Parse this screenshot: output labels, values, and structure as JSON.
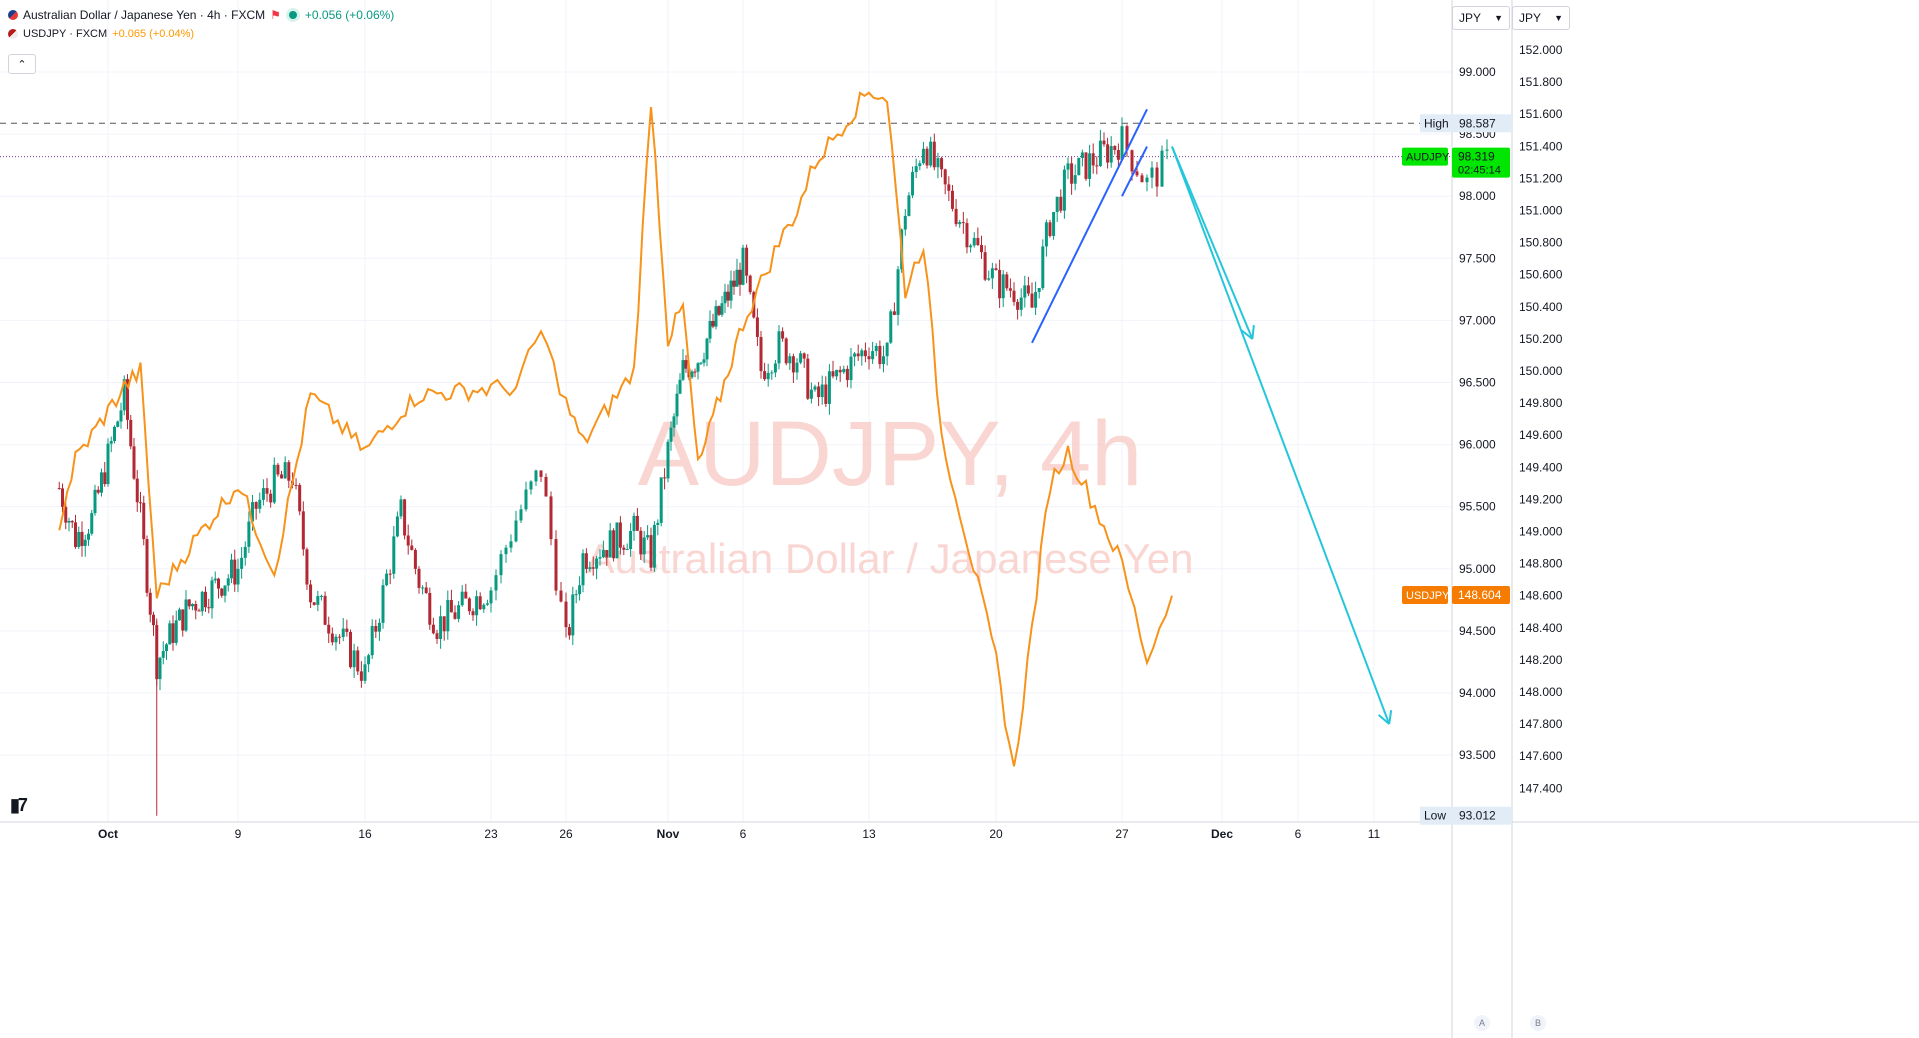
{
  "legend": {
    "main_symbol": "Australian Dollar / Japanese Yen · 4h · FXCM",
    "main_change": "+0.056 (+0.06%)",
    "compare_symbol": "USDJPY · FXCM",
    "compare_change": "+0.065 (+0.04%)",
    "collapse_icon": "chevron-up-icon"
  },
  "watermark": {
    "line1": "AUDJPY, 4h",
    "line2": "Australian Dollar / Japanese Yen"
  },
  "currency_selectors": [
    "JPY",
    "JPY"
  ],
  "scale_buttons": [
    "A",
    "B"
  ],
  "markers": {
    "high_label": "High",
    "high_value": "98.587",
    "low_label": "Low",
    "low_value": "93.012",
    "audjpy_label": "AUDJPY",
    "audjpy_value": "98.319",
    "countdown": "02:45:14",
    "usdjpy_label": "USDJPY",
    "usdjpy_value": "148.604"
  },
  "colors": {
    "up": "#089981",
    "down": "#b22833",
    "usdjpy": "#f7931a",
    "projection": "#26c6da",
    "wedge": "#2962ff",
    "price_tag": "#00e600"
  },
  "chart_data": {
    "type": "candlestick + line",
    "timeframe": "4h",
    "x_labels": [
      "Oct",
      "9",
      "16",
      "23",
      "26",
      "Nov",
      "6",
      "13",
      "20",
      "27",
      "Dec",
      "6",
      "11"
    ],
    "left_axis": {
      "symbol": "AUDJPY",
      "ticks": [
        "99.000",
        "98.500",
        "98.000",
        "97.500",
        "97.000",
        "96.500",
        "96.000",
        "95.500",
        "95.000",
        "94.500",
        "94.000",
        "93.500"
      ],
      "high": 98.587,
      "low": 93.012,
      "last": 98.319
    },
    "right_axis": {
      "symbol": "USDJPY",
      "ticks": [
        "152.000",
        "151.800",
        "151.600",
        "151.400",
        "151.200",
        "151.000",
        "150.800",
        "150.600",
        "150.400",
        "150.200",
        "150.000",
        "149.800",
        "149.600",
        "149.400",
        "149.200",
        "149.000",
        "148.800",
        "148.600",
        "148.400",
        "148.200",
        "148.000",
        "147.800",
        "147.600",
        "147.400"
      ],
      "last": 148.604
    },
    "audjpy_anchor_closes": [
      [
        "Sep 28",
        95.65
      ],
      [
        "Sep 29",
        95.25
      ],
      [
        "Sep 30",
        95.4
      ],
      [
        "Oct 2",
        96.4
      ],
      [
        "Oct 3",
        95.4
      ],
      [
        "Oct 4",
        94.25
      ],
      [
        "Oct 5",
        94.5
      ],
      [
        "Oct 6",
        94.7
      ],
      [
        "Oct 9",
        95.0
      ],
      [
        "Oct 10",
        95.5
      ],
      [
        "Oct 11",
        95.7
      ],
      [
        "Oct 12",
        95.75
      ],
      [
        "Oct 13",
        94.8
      ],
      [
        "Oct 16",
        94.15
      ],
      [
        "Oct 17",
        94.8
      ],
      [
        "Oct 18",
        95.45
      ],
      [
        "Oct 19",
        94.9
      ],
      [
        "Oct 20",
        94.55
      ],
      [
        "Oct 23",
        94.85
      ],
      [
        "Oct 24",
        95.4
      ],
      [
        "Oct 25",
        95.8
      ],
      [
        "Oct 26",
        94.4
      ],
      [
        "Oct 27",
        95.1
      ],
      [
        "Oct 30",
        95.3
      ],
      [
        "Oct 31",
        95.1
      ],
      [
        "Nov 1",
        95.95
      ],
      [
        "Nov 2",
        96.6
      ],
      [
        "Nov 3",
        96.7
      ],
      [
        "Nov 6",
        97.45
      ],
      [
        "Nov 7",
        96.6
      ],
      [
        "Nov 8",
        96.8
      ],
      [
        "Nov 9",
        96.7
      ],
      [
        "Nov 10",
        96.35
      ],
      [
        "Nov 13",
        96.8
      ],
      [
        "Nov 14",
        96.7
      ],
      [
        "Nov 15",
        97.9
      ],
      [
        "Nov 16",
        98.45
      ],
      [
        "Nov 17",
        98.1
      ],
      [
        "Nov 20",
        97.3
      ],
      [
        "Nov 21",
        97.25
      ],
      [
        "Nov 22",
        97.1
      ],
      [
        "Nov 23",
        97.8
      ],
      [
        "Nov 24",
        98.15
      ],
      [
        "Nov 27",
        98.45
      ],
      [
        "Nov 28",
        98.1
      ],
      [
        "Nov 29",
        98.32
      ]
    ],
    "usdjpy_anchor_points": [
      [
        "Sep 28",
        149.05
      ],
      [
        "Sep 29",
        149.45
      ],
      [
        "Oct 2",
        149.9
      ],
      [
        "Oct 3",
        150.0
      ],
      [
        "Oct 4",
        148.6
      ],
      [
        "Oct 6",
        148.9
      ],
      [
        "Oct 9",
        149.3
      ],
      [
        "Oct 11",
        148.75
      ],
      [
        "Oct 12",
        149.3
      ],
      [
        "Oct 13",
        149.85
      ],
      [
        "Oct 16",
        149.5
      ],
      [
        "Oct 18",
        149.75
      ],
      [
        "Oct 19",
        149.85
      ],
      [
        "Oct 24",
        149.9
      ],
      [
        "Oct 25",
        150.25
      ],
      [
        "Oct 26",
        149.8
      ],
      [
        "Oct 27",
        149.55
      ],
      [
        "Oct 30",
        150.0
      ],
      [
        "Oct 31",
        151.7
      ],
      [
        "Nov 1",
        150.2
      ],
      [
        "Nov 2",
        150.4
      ],
      [
        "Nov 3",
        149.4
      ],
      [
        "Nov 6",
        150.3
      ],
      [
        "Nov 8",
        150.8
      ],
      [
        "Nov 9",
        151.0
      ],
      [
        "Nov 10",
        151.3
      ],
      [
        "Nov 13",
        151.75
      ],
      [
        "Nov 14",
        151.7
      ],
      [
        "Nov 15",
        150.5
      ],
      [
        "Nov 16",
        150.8
      ],
      [
        "Nov 17",
        149.6
      ],
      [
        "Nov 20",
        148.2
      ],
      [
        "Nov 21",
        147.5
      ],
      [
        "Nov 22",
        148.4
      ],
      [
        "Nov 23",
        149.3
      ],
      [
        "Nov 24",
        149.5
      ],
      [
        "Nov 27",
        148.8
      ],
      [
        "Nov 28",
        148.2
      ],
      [
        "Nov 29",
        148.6
      ]
    ],
    "drawings": {
      "wedge_lower": [
        [
          "Nov 22",
          96.82
        ],
        [
          "Nov 28",
          98.7
        ]
      ],
      "wedge_upper": [
        [
          "Nov 27",
          98.0
        ],
        [
          "Nov 28",
          98.4
        ]
      ],
      "arrow_short": [
        [
          "Nov 29",
          98.4
        ],
        [
          "Dec 3",
          96.85
        ]
      ],
      "arrow_long": [
        [
          "Nov 29",
          98.4
        ],
        [
          "Dec 12",
          93.75
        ]
      ]
    }
  }
}
